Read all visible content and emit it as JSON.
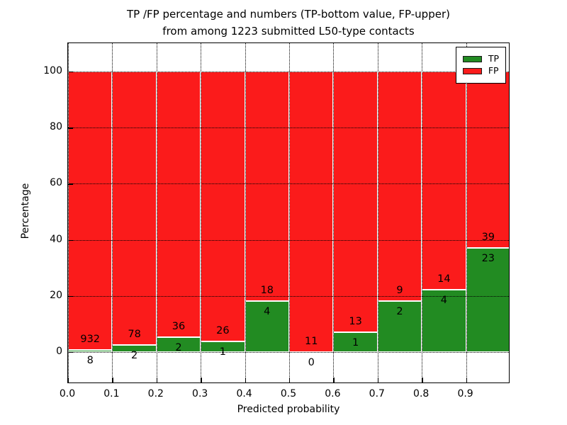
{
  "figure": {
    "title_line1": "TP /FP percentage and numbers (TP-bottom value, FP-upper)",
    "title_line2": "from among 1223 submitted L50-type contacts"
  },
  "chart_data": {
    "type": "bar",
    "stacked": true,
    "title": "TP /FP percentage and numbers (TP-bottom value, FP-upper) from among 1223 submitted L50-type contacts",
    "xlabel": "Predicted probability",
    "ylabel": "Percentage",
    "total_contacts": 1223,
    "x_ticks": [
      "0.0",
      "0.1",
      "0.2",
      "0.3",
      "0.4",
      "0.5",
      "0.6",
      "0.7",
      "0.8",
      "0.9"
    ],
    "y_ticks": [
      0,
      20,
      40,
      60,
      80,
      100
    ],
    "xlim": [
      0.0,
      1.0
    ],
    "ylim": [
      -11.4,
      110.2
    ],
    "grid": true,
    "grid_style": "dotted",
    "legend_position": "upper right",
    "categories": [
      "0.0-0.1",
      "0.1-0.2",
      "0.2-0.3",
      "0.3-0.4",
      "0.4-0.5",
      "0.5-0.6",
      "0.6-0.7",
      "0.7-0.8",
      "0.8-0.9",
      "0.9-1.0"
    ],
    "series": [
      {
        "name": "TP",
        "color": "#228b22",
        "values": [
          8,
          2,
          2,
          1,
          4,
          0,
          1,
          2,
          4,
          23
        ]
      },
      {
        "name": "FP",
        "color": "#fb1b1b",
        "values": [
          932,
          78,
          36,
          26,
          18,
          11,
          13,
          9,
          14,
          39
        ]
      }
    ],
    "tp_percent": [
      0.851,
      2.5,
      5.263,
      3.704,
      18.182,
      0.0,
      7.143,
      18.182,
      22.222,
      37.097
    ],
    "legend": [
      {
        "label": "TP",
        "color": "#228b22"
      },
      {
        "label": "FP",
        "color": "#fb1b1b"
      }
    ],
    "edge_color": "#ffffff",
    "annotation_color": "#000000"
  }
}
